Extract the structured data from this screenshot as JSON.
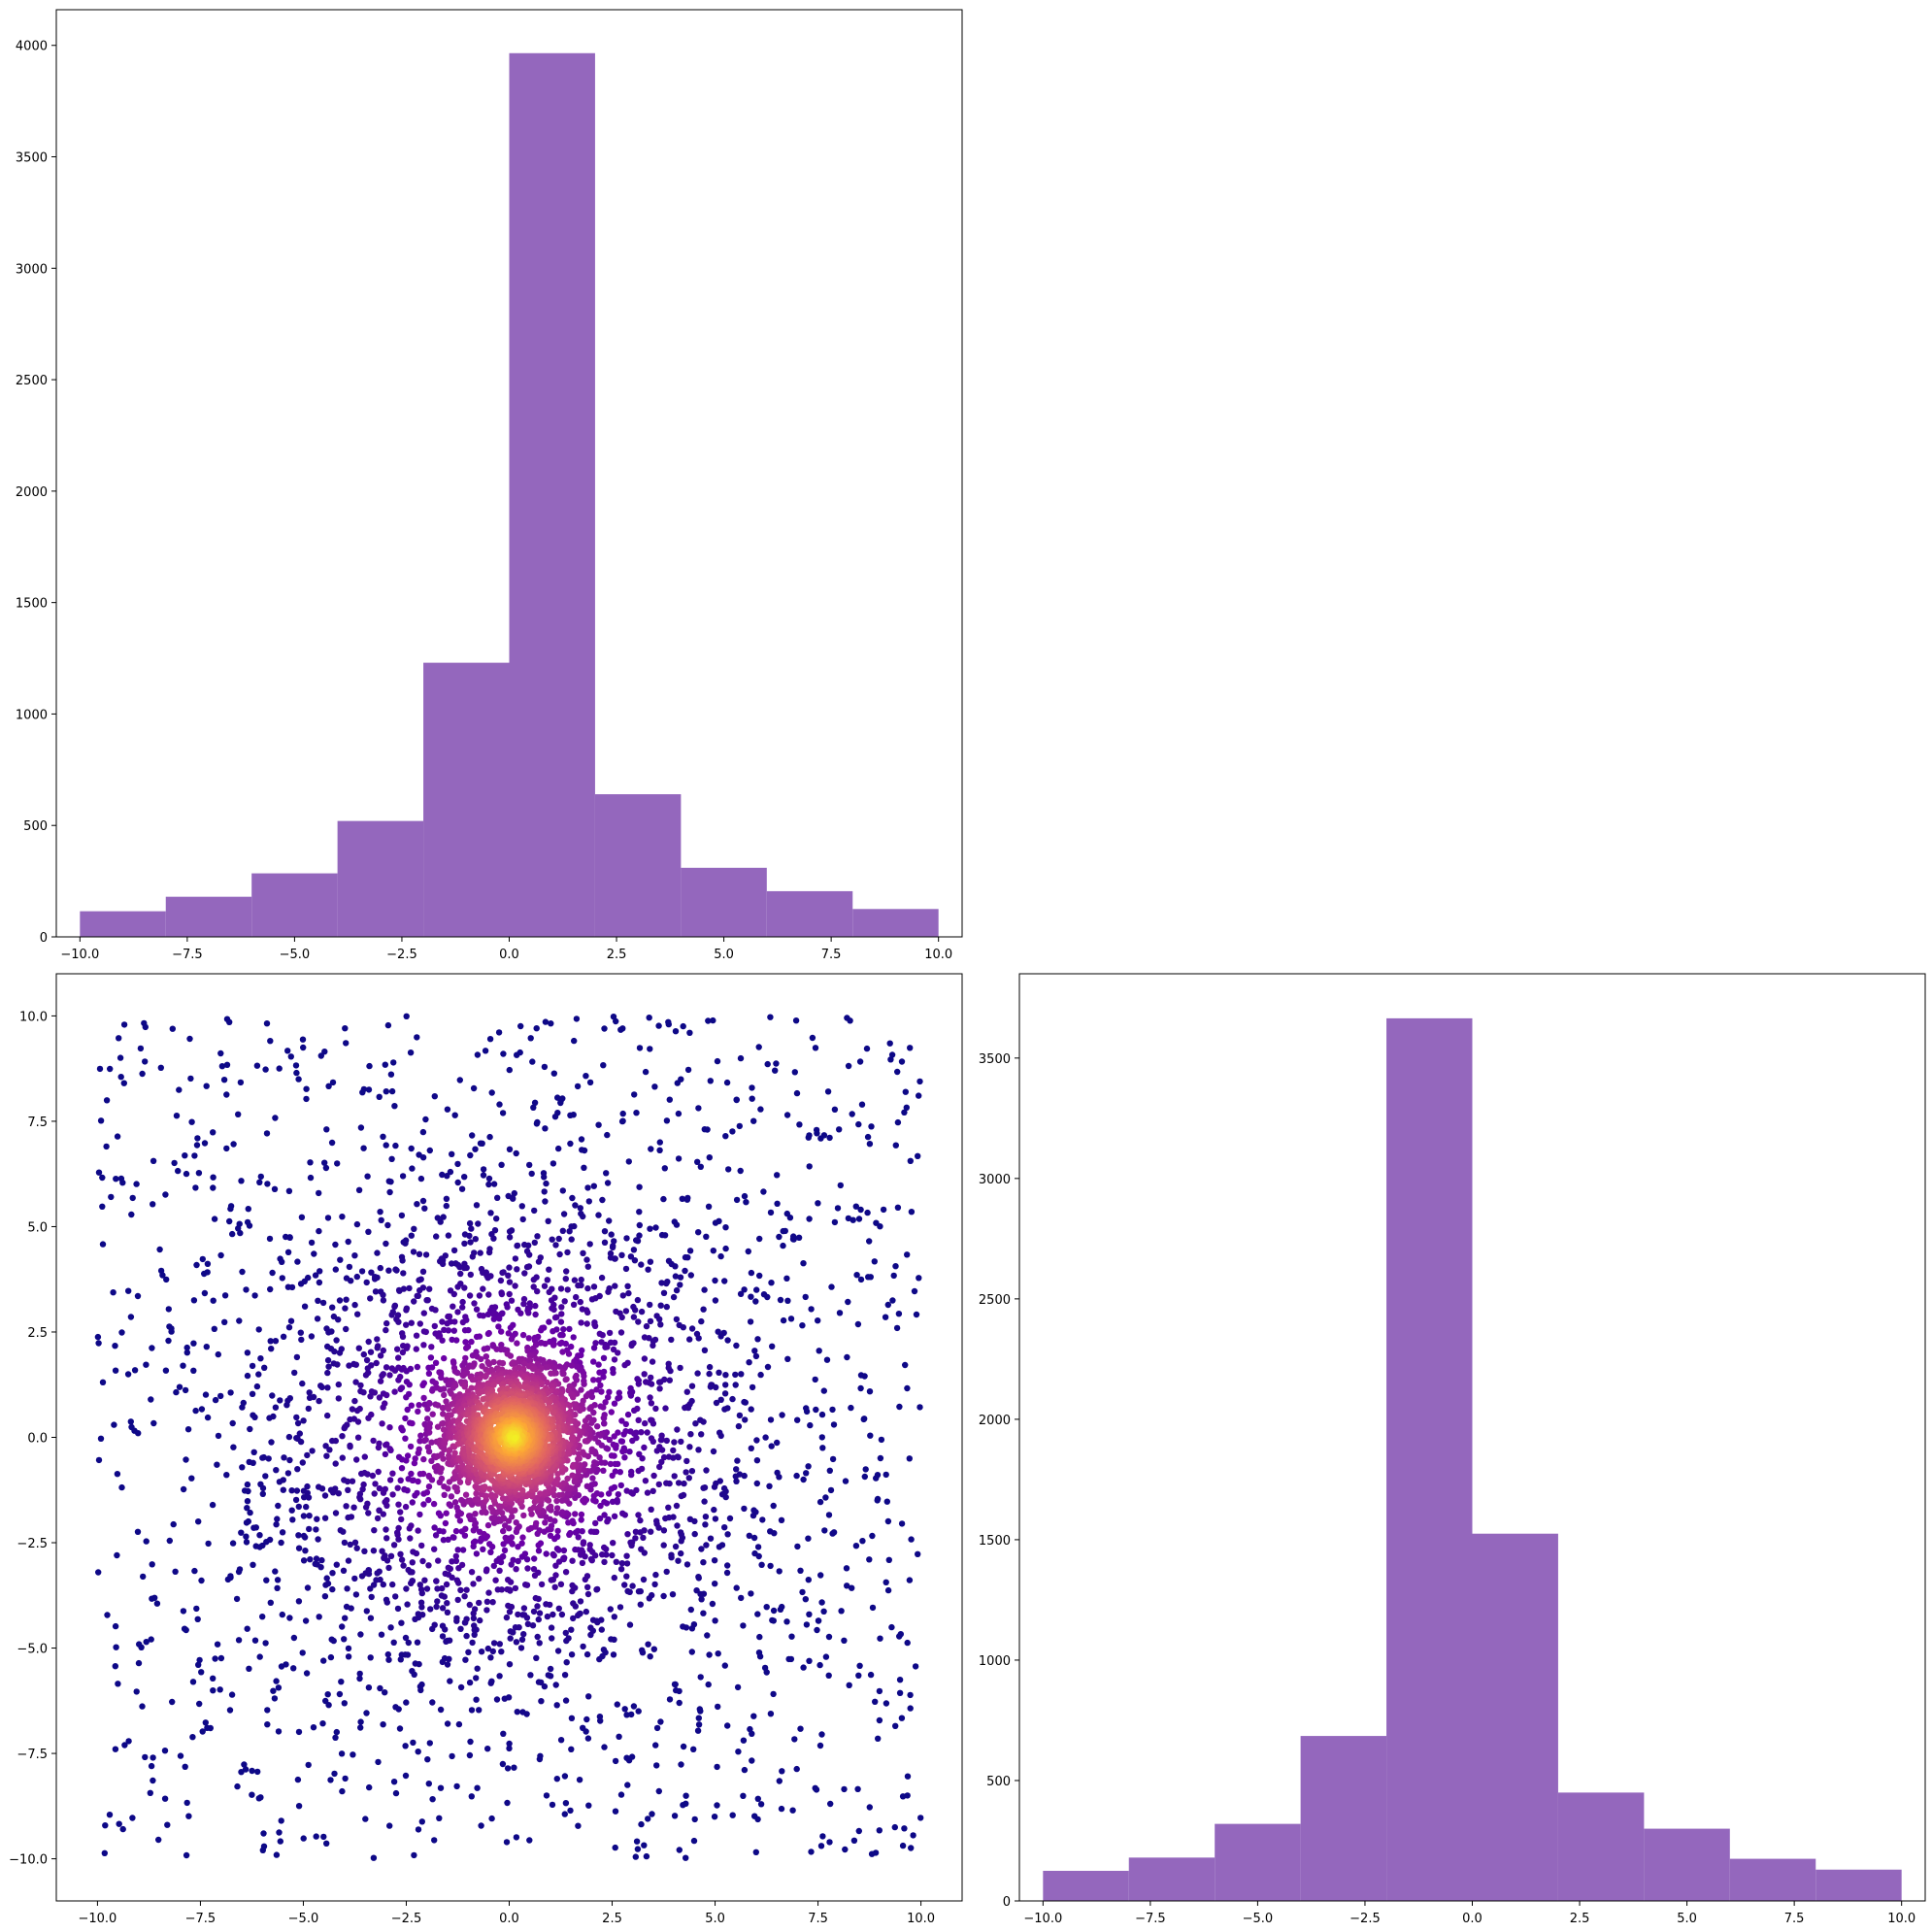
{
  "chart_data": [
    {
      "type": "bar",
      "panel": "top-left",
      "bin_edges": [
        -10,
        -8,
        -6,
        -4,
        -2,
        0,
        2,
        4,
        6,
        8,
        10
      ],
      "values": [
        115,
        180,
        285,
        520,
        1230,
        3965,
        640,
        310,
        205,
        125
      ],
      "color": "#9467bd",
      "xlim": [
        -10.55,
        10.55
      ],
      "ylim": [
        0,
        4160
      ],
      "xticks": [
        -10.0,
        -7.5,
        -5.0,
        -2.5,
        0.0,
        2.5,
        5.0,
        7.5,
        10.0
      ],
      "xtick_labels": [
        "−10.0",
        "−7.5",
        "−5.0",
        "−2.5",
        "0.0",
        "2.5",
        "5.0",
        "7.5",
        "10.0"
      ],
      "yticks": [
        0,
        500,
        1000,
        1500,
        2000,
        2500,
        3000,
        3500,
        4000
      ],
      "ytick_labels": [
        "0",
        "500",
        "1000",
        "1500",
        "2000",
        "2500",
        "3000",
        "3500",
        "4000"
      ],
      "title": "",
      "xlabel": "",
      "ylabel": "",
      "grid": false
    },
    {
      "type": "scatter",
      "panel": "bottom-left",
      "colormap": "plasma",
      "color_scale": [
        "#0d0887",
        "#6a00a8",
        "#b12a90",
        "#e16462",
        "#fca636",
        "#f0f921"
      ],
      "density_peak": [
        0.1,
        0.0
      ],
      "point_count": 5000,
      "xlim": [
        -11,
        11
      ],
      "ylim": [
        -11,
        11
      ],
      "xticks": [
        -10.0,
        -7.5,
        -5.0,
        -2.5,
        0.0,
        2.5,
        5.0,
        7.5,
        10.0
      ],
      "xtick_labels": [
        "−10.0",
        "−7.5",
        "−5.0",
        "−2.5",
        "0.0",
        "2.5",
        "5.0",
        "7.5",
        "10.0"
      ],
      "yticks": [
        -10.0,
        -7.5,
        -5.0,
        -2.5,
        0.0,
        2.5,
        5.0,
        7.5,
        10.0
      ],
      "ytick_labels": [
        "−10.0",
        "−7.5",
        "−5.0",
        "−2.5",
        "0.0",
        "2.5",
        "5.0",
        "7.5",
        "10.0"
      ],
      "title": "",
      "xlabel": "",
      "ylabel": "",
      "grid": false
    },
    {
      "type": "bar",
      "panel": "bottom-right",
      "bin_edges": [
        -10,
        -8,
        -6,
        -4,
        -2,
        0,
        2,
        4,
        6,
        8,
        10
      ],
      "values": [
        125,
        180,
        320,
        685,
        3665,
        1525,
        450,
        300,
        175,
        130
      ],
      "color": "#9467bd",
      "xlim": [
        -10.55,
        10.55
      ],
      "ylim": [
        0,
        3850
      ],
      "xticks": [
        -10.0,
        -7.5,
        -5.0,
        -2.5,
        0.0,
        2.5,
        5.0,
        7.5,
        10.0
      ],
      "xtick_labels": [
        "−10.0",
        "−7.5",
        "−5.0",
        "−2.5",
        "0.0",
        "2.5",
        "5.0",
        "7.5",
        "10.0"
      ],
      "yticks": [
        0,
        500,
        1000,
        1500,
        2000,
        2500,
        3000,
        3500
      ],
      "ytick_labels": [
        "0",
        "500",
        "1000",
        "1500",
        "2000",
        "2500",
        "3000",
        "3500"
      ],
      "title": "",
      "xlabel": "",
      "ylabel": "",
      "grid": false
    }
  ]
}
